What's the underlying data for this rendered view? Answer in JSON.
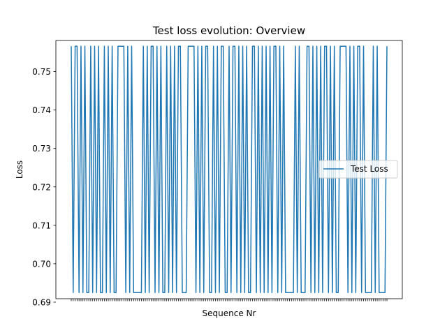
{
  "chart_data": {
    "type": "line",
    "title": "Test loss evolution: Overview",
    "xlabel": "Sequence Nr",
    "ylabel": "Loss",
    "ylim": [
      0.6909,
      0.7581
    ],
    "yticks": [
      0.69,
      0.7,
      0.71,
      0.72,
      0.73,
      0.74,
      0.75
    ],
    "ytick_labels": [
      "0.69",
      "0.70",
      "0.71",
      "0.72",
      "0.73",
      "0.74",
      "0.75"
    ],
    "x_tick_count": 163,
    "x_tick_labels_visible": false,
    "grid": false,
    "legend_position": "center-right",
    "series": [
      {
        "name": "Test Loss",
        "color": "#1f77b4",
        "low": 0.6925,
        "high": 0.7566,
        "values": [
          0.7566,
          0.6925,
          0.7566,
          0.7566,
          0.6925,
          0.7566,
          0.6925,
          0.7566,
          0.6925,
          0.6925,
          0.7566,
          0.6925,
          0.7566,
          0.6925,
          0.7566,
          0.6925,
          0.6925,
          0.7566,
          0.6925,
          0.7566,
          0.6925,
          0.7566,
          0.6925,
          0.6925,
          0.7566,
          0.7566,
          0.7566,
          0.7566,
          0.6925,
          0.7566,
          0.6925,
          0.7566,
          0.6925,
          0.6925,
          0.6925,
          0.6925,
          0.6925,
          0.7566,
          0.6925,
          0.7566,
          0.6925,
          0.7566,
          0.7566,
          0.6925,
          0.7566,
          0.6925,
          0.7566,
          0.6925,
          0.6925,
          0.7566,
          0.6925,
          0.7566,
          0.6925,
          0.7566,
          0.6925,
          0.7566,
          0.7566,
          0.6925,
          0.6925,
          0.6925,
          0.7566,
          0.7566,
          0.7566,
          0.7566,
          0.6925,
          0.7566,
          0.6925,
          0.7566,
          0.6925,
          0.7566,
          0.7566,
          0.6925,
          0.6925,
          0.7566,
          0.6925,
          0.7566,
          0.6925,
          0.7566,
          0.7566,
          0.6925,
          0.6925,
          0.7566,
          0.6925,
          0.7566,
          0.7566,
          0.6925,
          0.7566,
          0.6925,
          0.7566,
          0.6925,
          0.7566,
          0.6925,
          0.6925,
          0.7566,
          0.7566,
          0.6925,
          0.7566,
          0.6925,
          0.7566,
          0.6925,
          0.7566,
          0.6925,
          0.7566,
          0.6925,
          0.7566,
          0.7566,
          0.6925,
          0.7566,
          0.6925,
          0.7566,
          0.6925,
          0.6925,
          0.6925,
          0.6925,
          0.6925,
          0.7566,
          0.6925,
          0.7566,
          0.6925,
          0.6925,
          0.6925,
          0.7566,
          0.7566,
          0.6925,
          0.7566,
          0.6925,
          0.7566,
          0.6925,
          0.7566,
          0.6925,
          0.7566,
          0.7566,
          0.6925,
          0.7566,
          0.6925,
          0.7566,
          0.6925,
          0.6925,
          0.7566,
          0.7566,
          0.7566,
          0.7566,
          0.6925,
          0.7566,
          0.6925,
          0.7566,
          0.6925,
          0.7566,
          0.7566,
          0.6925,
          0.7566,
          0.6925,
          0.6925,
          0.6925,
          0.6925,
          0.7566,
          0.6925,
          0.7566,
          0.6925,
          0.6925,
          0.6925,
          0.6925,
          0.7566
        ]
      }
    ]
  }
}
